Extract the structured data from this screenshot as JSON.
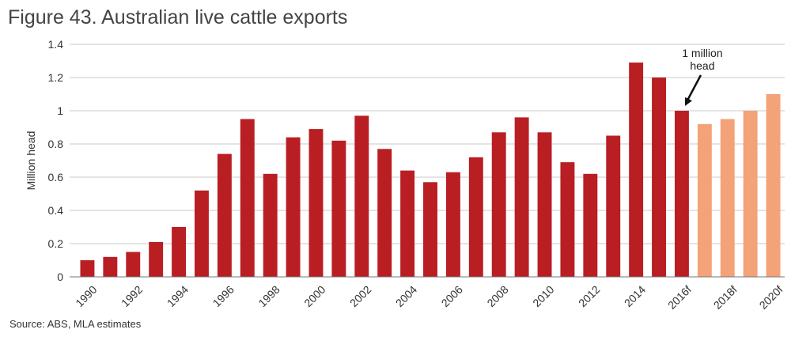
{
  "figure": {
    "title": "Figure 43. Australian live cattle exports",
    "source": "Source: ABS, MLA estimates"
  },
  "colors": {
    "actual": "#b91e23",
    "forecast": "#f4a278"
  },
  "chart_data": {
    "type": "bar",
    "title": "Figure 43. Australian live cattle exports",
    "xlabel": "",
    "ylabel": "Million head",
    "ylim": [
      0,
      1.4
    ],
    "yticks": [
      0,
      0.2,
      0.4,
      0.6,
      0.8,
      1,
      1.2,
      1.4
    ],
    "ytick_labels": [
      "0",
      "0.2",
      "0.4",
      "0.6",
      "0.8",
      "1",
      "1.2",
      "1.4"
    ],
    "grid": true,
    "categories": [
      "1990",
      "1991",
      "1992",
      "1993",
      "1994",
      "1995",
      "1996",
      "1997",
      "1998",
      "1999",
      "2000",
      "2001",
      "2002",
      "2003",
      "2004",
      "2005",
      "2006",
      "2007",
      "2008",
      "2009",
      "2010",
      "2011",
      "2012",
      "2013",
      "2014",
      "2015",
      "2016f",
      "2017f",
      "2018f",
      "2019f",
      "2020f"
    ],
    "x_tick_labels": [
      "1990",
      "",
      "1992",
      "",
      "1994",
      "",
      "1996",
      "",
      "1998",
      "",
      "2000",
      "",
      "2002",
      "",
      "2004",
      "",
      "2006",
      "",
      "2008",
      "",
      "2010",
      "",
      "2012",
      "",
      "2014",
      "",
      "2016f",
      "",
      "2018f",
      "",
      "2020f"
    ],
    "values": [
      0.1,
      0.12,
      0.15,
      0.21,
      0.3,
      0.52,
      0.74,
      0.95,
      0.62,
      0.84,
      0.89,
      0.82,
      0.97,
      0.77,
      0.64,
      0.57,
      0.63,
      0.72,
      0.87,
      0.96,
      0.87,
      0.69,
      0.62,
      0.85,
      1.29,
      1.2,
      1.0,
      0.92,
      0.95,
      1.0,
      1.1
    ],
    "forecast_from_index": 27,
    "annotation": {
      "text_lines": [
        "1 million",
        "head"
      ],
      "target_category": "2016f"
    }
  }
}
